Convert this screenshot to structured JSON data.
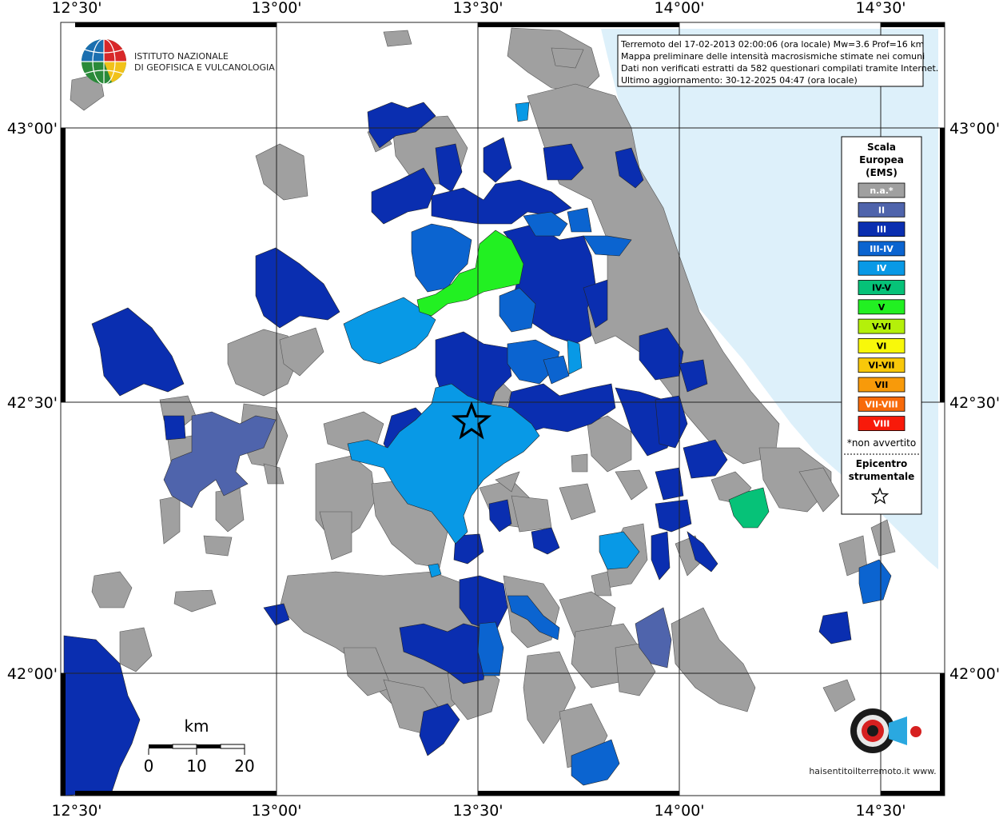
{
  "map": {
    "info_lines": [
      "Terremoto del 17-02-2013 02:00:06 (ora locale) Mw=3.6 Prof=16 km",
      "Mappa preliminare delle intensità macrosismiche stimate nei comuni",
      "Dati non verificati estratti da 582 questionari compilati tramite Internet.",
      "Ultimo aggiornamento: 30-12-2025 04:47 (ora locale)"
    ],
    "longitude_labels": [
      "12°30'",
      "13°00'",
      "13°30'",
      "14°00'",
      "14°30'"
    ],
    "latitude_labels": [
      "43°00'",
      "42°30'",
      "42°00'"
    ],
    "institute": {
      "line1": "ISTITUTO NAZIONALE",
      "line2": "DI GEOFISICA E VULCANOLOGIA"
    },
    "site_logo_text": "haisentitoilterremoto.it www.",
    "scale_bar": {
      "unit": "km",
      "ticks": [
        "0",
        "10",
        "20"
      ]
    },
    "legend": {
      "title_lines": [
        "Scala",
        "Europea",
        "(EMS)"
      ],
      "items": [
        {
          "code": "n.a.*",
          "color": "#a0a0a0",
          "text_color": "#ffffff"
        },
        {
          "code": "II",
          "color": "#4f64ac",
          "text_color": "#ffffff"
        },
        {
          "code": "III",
          "color": "#0a2eb0",
          "text_color": "#ffffff"
        },
        {
          "code": "III-IV",
          "color": "#0b64d0",
          "text_color": "#ffffff"
        },
        {
          "code": "IV",
          "color": "#0899e6",
          "text_color": "#ffffff"
        },
        {
          "code": "IV-V",
          "color": "#06c278",
          "text_color": "#000000"
        },
        {
          "code": "V",
          "color": "#22f022",
          "text_color": "#000000"
        },
        {
          "code": "V-VI",
          "color": "#b4f00a",
          "text_color": "#000000"
        },
        {
          "code": "VI",
          "color": "#f8f80a",
          "text_color": "#000000"
        },
        {
          "code": "VI-VII",
          "color": "#f8c80a",
          "text_color": "#000000"
        },
        {
          "code": "VII",
          "color": "#f89a0a",
          "text_color": "#000000"
        },
        {
          "code": "VII-VIII",
          "color": "#f86a0a",
          "text_color": "#ffffff"
        },
        {
          "code": "VIII",
          "color": "#f81a0a",
          "text_color": "#ffffff"
        }
      ],
      "note": "*non avvertito",
      "epicenter_lines": [
        "Epicentro",
        "strumentale"
      ]
    },
    "colors": {
      "sea": "#ddf0fa",
      "na": "#a0a0a0",
      "II": "#4f64ac",
      "III": "#0a2eb0",
      "III-IV": "#0b64d0",
      "IV": "#0899e6",
      "IV-V": "#06c278",
      "V": "#22f022"
    }
  }
}
